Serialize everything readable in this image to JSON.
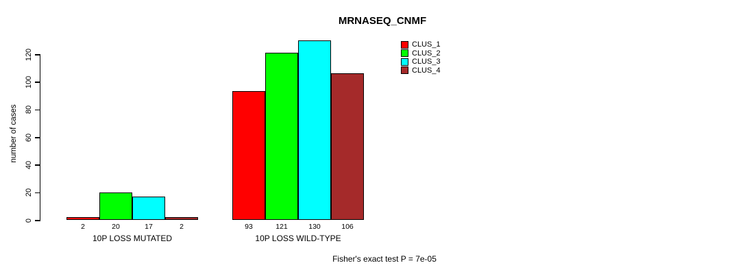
{
  "title": "MRNASEQ_CNMF",
  "footer": "Fisher's exact test P = 7e-05",
  "chart_data": {
    "type": "bar",
    "title": "MRNASEQ_CNMF",
    "xlabel": "",
    "ylabel": "number of cases",
    "categories": [
      "10P LOSS MUTATED",
      "10P LOSS WILD-TYPE"
    ],
    "series": [
      {
        "name": "CLUS_1",
        "color": "#ff0000",
        "values": [
          2,
          93
        ]
      },
      {
        "name": "CLUS_2",
        "color": "#00ff00",
        "values": [
          20,
          121
        ]
      },
      {
        "name": "CLUS_3",
        "color": "#00ffff",
        "values": [
          17,
          130
        ]
      },
      {
        "name": "CLUS_4",
        "color": "#a52a2a",
        "values": [
          2,
          106
        ]
      }
    ],
    "yticks": [
      0,
      20,
      40,
      60,
      80,
      100,
      120
    ],
    "ylim": [
      0,
      130
    ],
    "grid": false,
    "bar_value_labels": true,
    "legend_position": "top-right",
    "annotation": "Fisher's exact test P = 7e-05"
  }
}
